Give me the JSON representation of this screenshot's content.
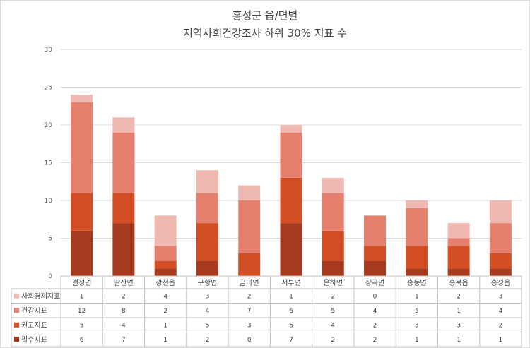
{
  "chart_data": {
    "type": "bar",
    "stacked": true,
    "title": "홍성군 읍/면별",
    "subtitle": "지역사회건강조사 하위 30% 지표 수",
    "categories": [
      "결성면",
      "갈산면",
      "광천읍",
      "구항면",
      "금마면",
      "서부면",
      "은하면",
      "장곡면",
      "홍동면",
      "홍북읍",
      "홍성읍"
    ],
    "ylim": [
      0,
      30
    ],
    "yticks": [
      0,
      5,
      10,
      15,
      20,
      25,
      30
    ],
    "grid": true,
    "legend": "data-table-left",
    "series": [
      {
        "name": "필수지표",
        "color": "#a63a1f",
        "values": [
          6,
          7,
          1,
          2,
          0,
          7,
          2,
          2,
          1,
          1,
          1
        ]
      },
      {
        "name": "권고지표",
        "color": "#d24f26",
        "values": [
          5,
          4,
          1,
          5,
          3,
          6,
          4,
          2,
          3,
          3,
          2
        ]
      },
      {
        "name": "건강지표",
        "color": "#e5806e",
        "values": [
          12,
          8,
          2,
          4,
          7,
          6,
          5,
          4,
          5,
          1,
          4
        ]
      },
      {
        "name": "사회경제지표",
        "color": "#efb8b1",
        "values": [
          1,
          2,
          4,
          3,
          2,
          1,
          2,
          0,
          1,
          2,
          3
        ]
      }
    ],
    "table_order": [
      3,
      2,
      1,
      0
    ]
  }
}
